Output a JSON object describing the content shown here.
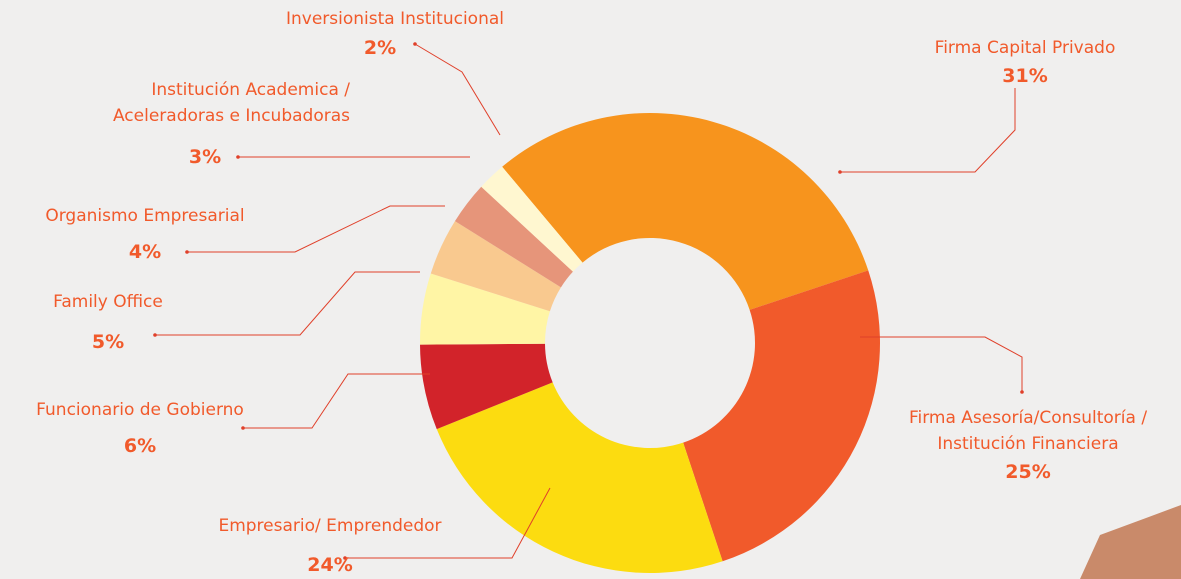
{
  "chart_data": {
    "type": "donut",
    "categories": [
      "Firma Capital Privado",
      "Firma Asesoría/Consultoría / Institución Financiera",
      "Empresario/ Emprendedor",
      "Funcionario de Gobierno",
      "Family Office",
      "Organismo Empresarial",
      "Institución Academica / Aceleradoras e Incubadoras",
      "Inversionista Institucional"
    ],
    "values": [
      31,
      25,
      24,
      6,
      5,
      4,
      3,
      2
    ],
    "value_labels": [
      "31%",
      "25%",
      "24%",
      "6%",
      "5%",
      "4%",
      "3%",
      "2%"
    ],
    "colors": [
      "#f7941d",
      "#f15a2b",
      "#fcdc10",
      "#d2232a",
      "#fff5a5",
      "#f9c98f",
      "#e6957a",
      "#fff7d0"
    ]
  }
}
